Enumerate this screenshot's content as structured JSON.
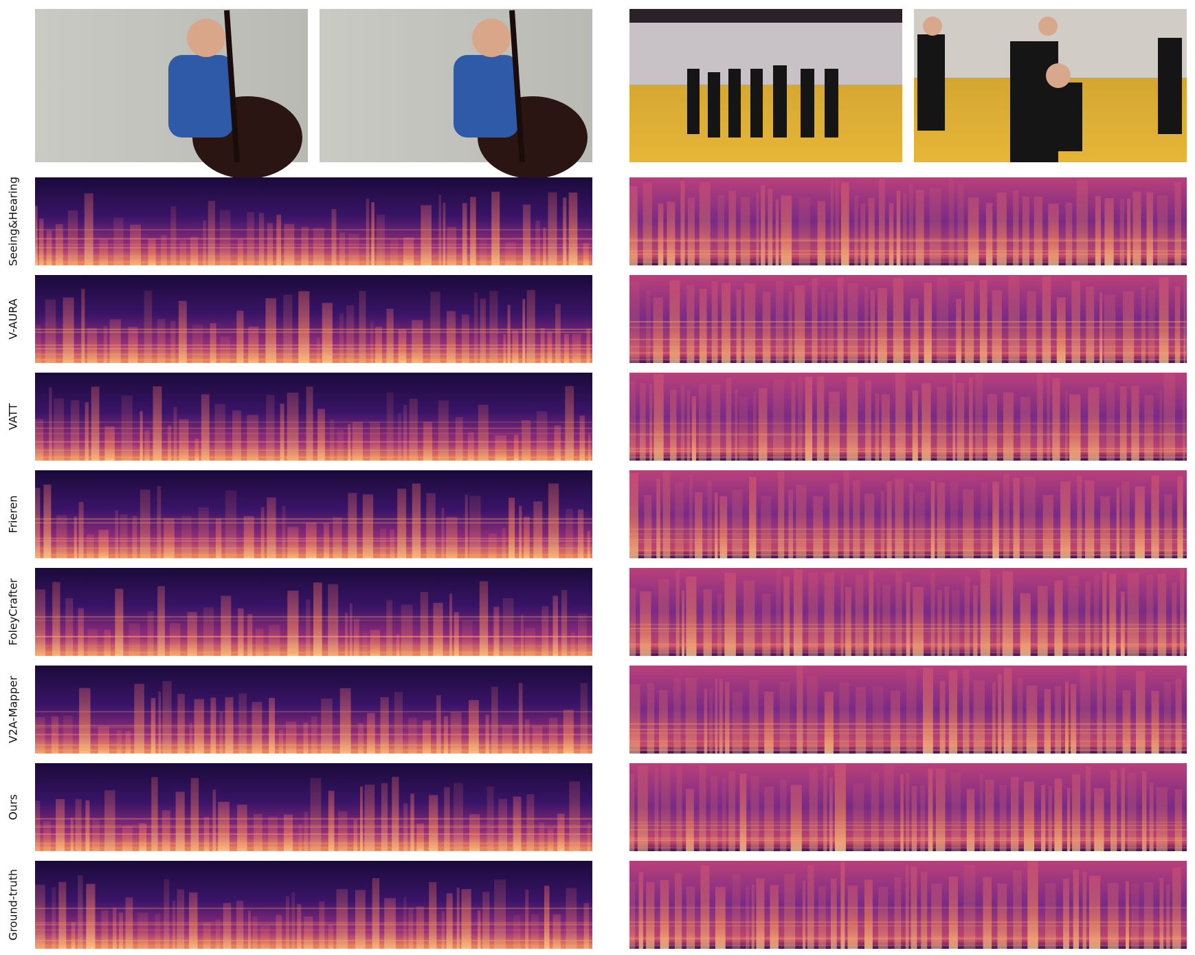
{
  "rows": [
    {
      "label": "Seeing&Hearing"
    },
    {
      "label": "V-AURA"
    },
    {
      "label": "VATT"
    },
    {
      "label": "Frieren"
    },
    {
      "label": "FoleyCrafter"
    },
    {
      "label": "V2A-Mapper"
    },
    {
      "label": "Ours"
    },
    {
      "label": "Ground-truth"
    }
  ]
}
